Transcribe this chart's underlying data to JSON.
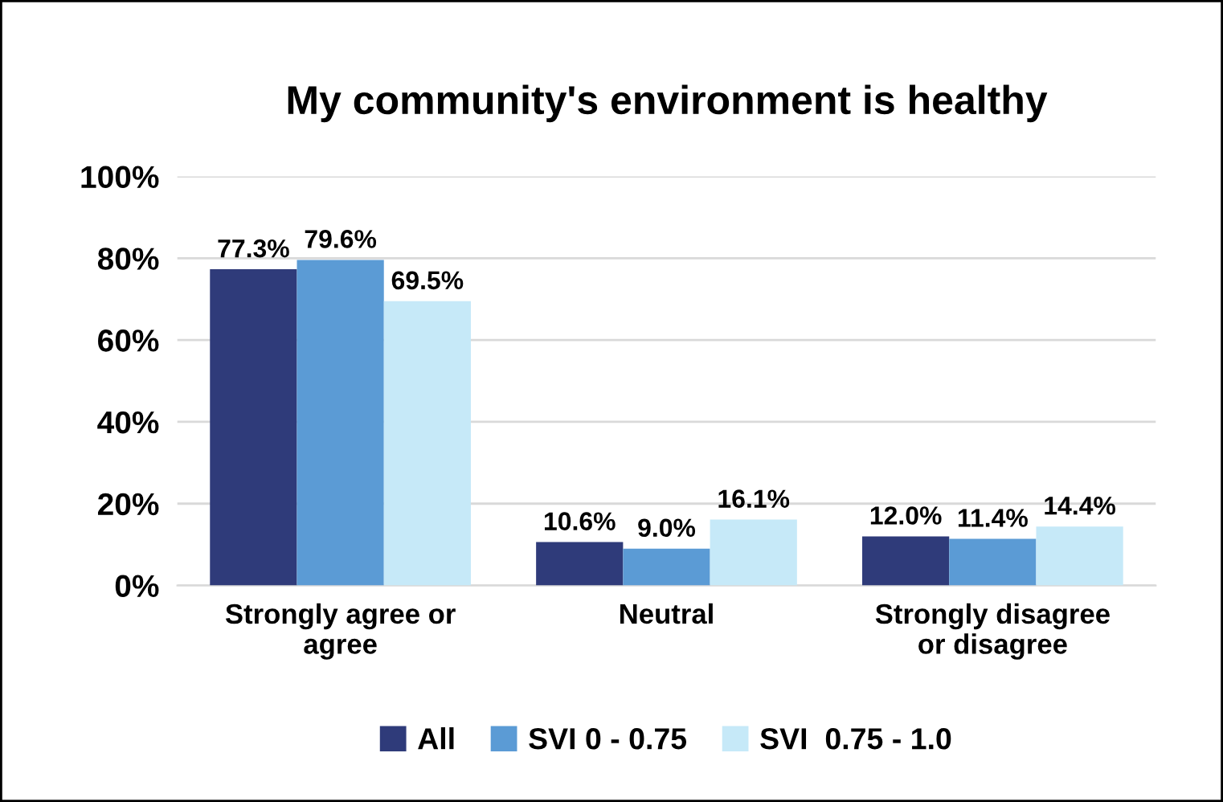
{
  "chart_data": {
    "type": "bar",
    "title": "My community's environment is healthy",
    "categories": [
      "Strongly agree or\nagree",
      "Neutral",
      "Strongly disagree\nor disagree"
    ],
    "series": [
      {
        "name": "All",
        "color": "#2f3b7a",
        "values": [
          77.3,
          10.6,
          12.0
        ],
        "value_labels": [
          "77.3%",
          "10.6%",
          "12.0%"
        ]
      },
      {
        "name": "SVI 0 - 0.75",
        "color": "#5b9bd5",
        "values": [
          79.6,
          9.0,
          11.4
        ],
        "value_labels": [
          "79.6%",
          "9.0%",
          "11.4%"
        ]
      },
      {
        "name": "SVI  0.75 - 1.0",
        "color": "#c6e9f8",
        "values": [
          69.5,
          16.1,
          14.4
        ],
        "value_labels": [
          "69.5%",
          "16.1%",
          "14.4%"
        ]
      }
    ],
    "ylim": [
      0,
      100
    ],
    "yticks": [
      {
        "value": 0,
        "label": "0%"
      },
      {
        "value": 20,
        "label": "20%"
      },
      {
        "value": 40,
        "label": "40%"
      },
      {
        "value": 60,
        "label": "60%"
      },
      {
        "value": 80,
        "label": "80%"
      },
      {
        "value": 100,
        "label": "100%"
      }
    ],
    "grid": "y",
    "legend": "bottom"
  }
}
